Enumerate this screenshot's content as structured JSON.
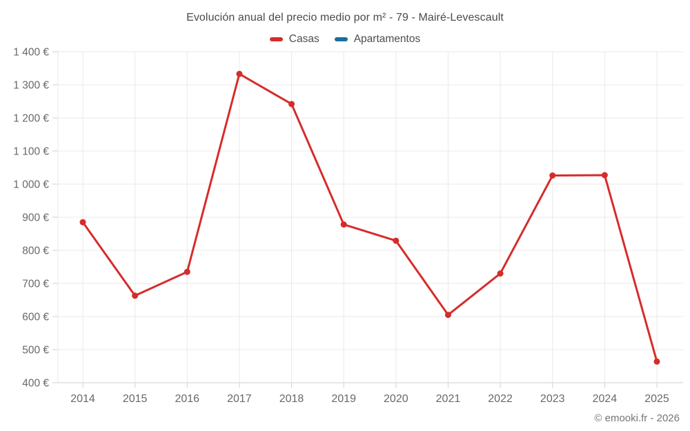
{
  "title": "Evolución anual del precio medio por m² - 79 - Mairé-Levescault",
  "footer": "© emooki.fr - 2026",
  "legend": {
    "items": [
      {
        "label": "Casas",
        "color": "#d62b2b"
      },
      {
        "label": "Apartamentos",
        "color": "#1a6d9e"
      }
    ]
  },
  "chart_data": {
    "type": "line",
    "title": "Evolución anual del precio medio por m² - 79 - Mairé-Levescault",
    "categories": [
      "2014",
      "2015",
      "2016",
      "2017",
      "2018",
      "2019",
      "2020",
      "2021",
      "2022",
      "2023",
      "2024",
      "2025"
    ],
    "series": [
      {
        "name": "Casas",
        "color": "#d62b2b",
        "values": [
          885,
          663,
          735,
          1333,
          1242,
          878,
          829,
          605,
          730,
          1026,
          1027,
          464
        ]
      },
      {
        "name": "Apartamentos",
        "color": "#1a6d9e",
        "values": []
      }
    ],
    "xlabel": "",
    "ylabel": "",
    "ylim": [
      400,
      1400
    ],
    "yticks": [
      {
        "value": 400,
        "label": "400 €"
      },
      {
        "value": 500,
        "label": "500 €"
      },
      {
        "value": 600,
        "label": "600 €"
      },
      {
        "value": 700,
        "label": "700 €"
      },
      {
        "value": 800,
        "label": "800 €"
      },
      {
        "value": 900,
        "label": "900 €"
      },
      {
        "value": 1000,
        "label": "1 000 €"
      },
      {
        "value": 1100,
        "label": "1 100 €"
      },
      {
        "value": 1200,
        "label": "1 200 €"
      },
      {
        "value": 1300,
        "label": "1 300 €"
      },
      {
        "value": 1400,
        "label": "1 400 €"
      }
    ],
    "grid": true,
    "legend_position": "top",
    "colors": {
      "grid": "#e9e9e9",
      "axis_line": "#cfcfcf",
      "tick_text": "#686868"
    }
  }
}
